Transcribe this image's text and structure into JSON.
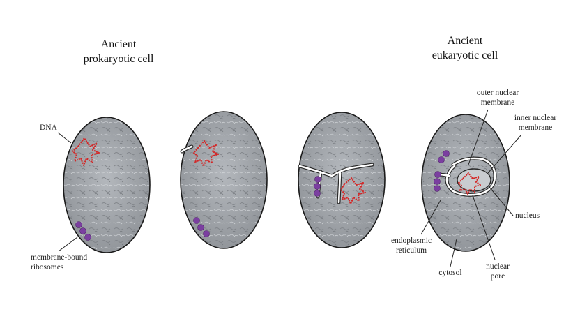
{
  "titles": {
    "prokaryote_line1": "Ancient",
    "prokaryote_line2": "prokaryotic cell",
    "eukaryote_line1": "Ancient",
    "eukaryote_line2": "eukaryotic cell"
  },
  "labels": {
    "dna": "DNA",
    "ribosomes_line1": "membrane-bound",
    "ribosomes_line2": "ribosomes",
    "outer_nuclear_line1": "outer nuclear",
    "outer_nuclear_line2": "membrane",
    "inner_nuclear_line1": "inner nuclear",
    "inner_nuclear_line2": "membrane",
    "nucleus": "nucleus",
    "er_line1": "endoplasmic",
    "er_line2": "reticulum",
    "cytosol": "cytosol",
    "pore_line1": "nuclear",
    "pore_line2": "pore"
  },
  "colors": {
    "cytoplasm": "#9fa3a8",
    "dna": "#d42424",
    "ribosome": "#7b3fa0"
  }
}
